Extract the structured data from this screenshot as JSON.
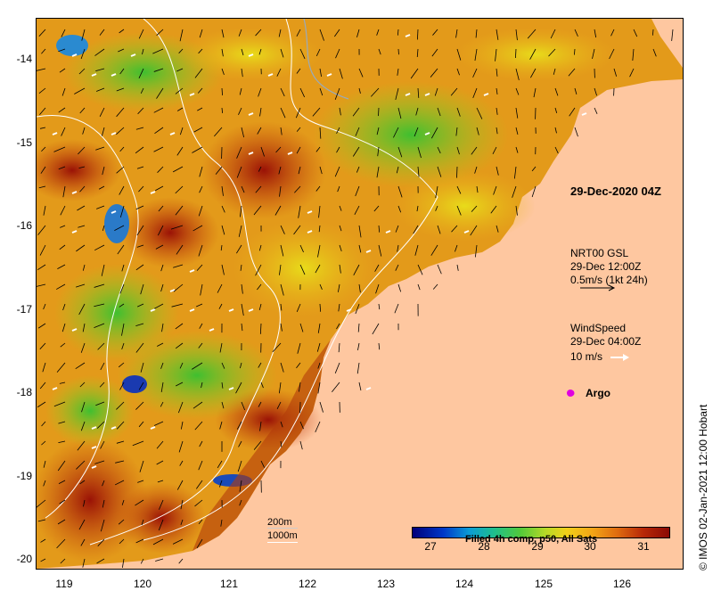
{
  "axes": {
    "y_ticks": [
      "-14",
      "-15",
      "-16",
      "-17",
      "-18",
      "-19",
      "-20"
    ],
    "x_ticks": [
      "119",
      "120",
      "121",
      "122",
      "123",
      "124",
      "125",
      "126"
    ]
  },
  "title_time": "29-Dec-2020 04Z",
  "legend": {
    "current_source": "NRT00 GSL",
    "current_time": "29-Dec 12:00Z",
    "current_scale": "0.5m/s (1kt 24h)",
    "wind_label": "WindSpeed",
    "wind_time": "29-Dec 04:00Z",
    "wind_scale": "10 m/s",
    "argo_label": "Argo",
    "isobath_1": "200m",
    "isobath_2": "1000m"
  },
  "colorbar": {
    "title": "Filled 4h comp, p50, All Sats",
    "ticks": [
      "27",
      "28",
      "29",
      "30",
      "31"
    ]
  },
  "credit": "© IMOS 02-Jan-2021 12:00 Hobart",
  "colors": {
    "land": "#fec7a0",
    "argo": "#e000e0",
    "isobath": "#ffffff"
  }
}
